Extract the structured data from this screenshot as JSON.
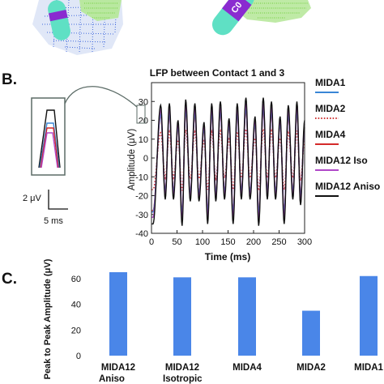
{
  "panel_labels": {
    "b": "B.",
    "c": "C."
  },
  "top_image": {
    "electrode_label": "C0"
  },
  "colors": {
    "MIDA1": "#3a86d6",
    "MIDA2": "#d03a3a",
    "MIDA4": "#d42a2a",
    "MIDA12_Iso": "#b048c8",
    "MIDA12_Aniso": "#111111",
    "bar": "#4a86e8",
    "electrode": "#5fe0c4",
    "electrode_band": "#8a2bd0",
    "blue_mesh": "#2050d8",
    "green_mesh": "#6fce3a"
  },
  "scale_bar": {
    "y_label": "2 μV",
    "x_label": "5 ms"
  },
  "chart_data": [
    {
      "type": "line",
      "title": "LFP between Contact 1 and 3",
      "xlabel": "Time (ms)",
      "ylabel": "Amplitude (μV)",
      "xlim": [
        0,
        300
      ],
      "ylim": [
        -40,
        40
      ],
      "xticks": [
        0,
        50,
        100,
        150,
        200,
        250,
        300
      ],
      "yticks": [
        -40,
        -30,
        -20,
        -10,
        0,
        10,
        20,
        30
      ],
      "grid": false,
      "legend_position": "right",
      "legend": [
        "MIDA1",
        "MIDA2",
        "MIDA4",
        "MIDA12 Iso",
        "MIDA12 Aniso"
      ],
      "series": [
        {
          "name": "MIDA1",
          "color_key": "MIDA1",
          "style": "solid",
          "scale": 0.82
        },
        {
          "name": "MIDA2",
          "color_key": "MIDA2",
          "style": "dotted",
          "scale": 0.48
        },
        {
          "name": "MIDA4",
          "color_key": "MIDA4",
          "style": "solid",
          "scale": 0.8
        },
        {
          "name": "MIDA12 Iso",
          "color_key": "MIDA12_Iso",
          "style": "solid",
          "scale": 0.9
        },
        {
          "name": "MIDA12 Aniso",
          "color_key": "MIDA12_Aniso",
          "style": "solid",
          "scale": 1.0
        }
      ],
      "aniso_peaks": [
        [
          18,
          28
        ],
        [
          35,
          29
        ],
        [
          52,
          20
        ],
        [
          67,
          31
        ],
        [
          85,
          29
        ],
        [
          103,
          19
        ],
        [
          118,
          29
        ],
        [
          135,
          30
        ],
        [
          152,
          21
        ],
        [
          168,
          29
        ],
        [
          185,
          32
        ],
        [
          203,
          22
        ],
        [
          219,
          32
        ],
        [
          235,
          30
        ],
        [
          252,
          22
        ],
        [
          268,
          28
        ],
        [
          285,
          30
        ],
        [
          300,
          20
        ]
      ],
      "aniso_troughs": [
        [
          3,
          -35
        ],
        [
          27,
          -22
        ],
        [
          43,
          -22
        ],
        [
          60,
          -36
        ],
        [
          76,
          -23
        ],
        [
          93,
          -23
        ],
        [
          110,
          -35
        ],
        [
          126,
          -23
        ],
        [
          143,
          -22
        ],
        [
          160,
          -35
        ],
        [
          176,
          -22
        ],
        [
          193,
          -22
        ],
        [
          210,
          -36
        ],
        [
          227,
          -22
        ],
        [
          243,
          -22
        ],
        [
          260,
          -35
        ],
        [
          277,
          -22
        ],
        [
          292,
          -25
        ]
      ]
    },
    {
      "type": "bar",
      "ylabel": "Peak to Peak Amplitude (μV)",
      "ylim": [
        0,
        65
      ],
      "yticks": [
        0,
        20,
        40,
        60
      ],
      "categories": [
        "MIDA12\nAniso",
        "MIDA12\nIsotropic",
        "MIDA4",
        "MIDA2",
        "MIDA1"
      ],
      "values": [
        65,
        61,
        61,
        35,
        62
      ]
    }
  ]
}
